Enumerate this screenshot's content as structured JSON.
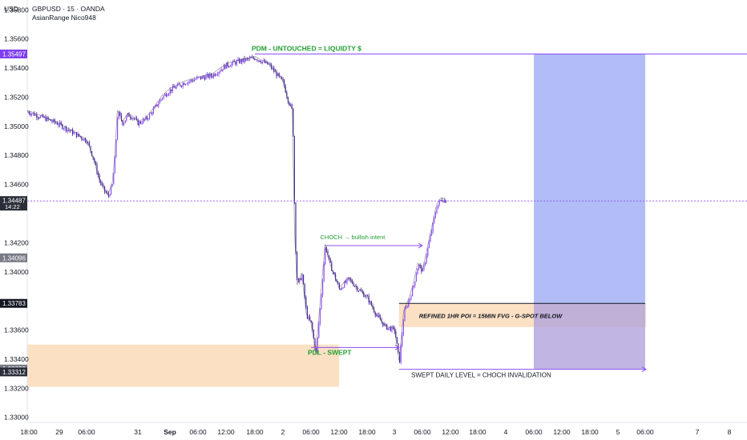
{
  "header": {
    "symbol_line": "GBPUSD · 15 · OANDA",
    "indicator": "AsianRange Nico948",
    "currency": "USD"
  },
  "colors": {
    "bull": "#7b2fe0",
    "bear": "#7b2fe0",
    "accent": "#8d4df7",
    "zone": "#f9cc9d",
    "target": "#7f8ff0",
    "stop": "#b1a2dc",
    "green_text": "#22a033"
  },
  "chart_data": {
    "type": "candlestick",
    "symbol": "GBPUSD",
    "timeframe": "15",
    "ylim": [
      1.3292,
      1.3588
    ],
    "y_ticks": [
      "1.33000",
      "1.33200",
      "1.33400",
      "1.33600",
      "1.34000",
      "1.34200",
      "1.34600",
      "1.34800",
      "1.35000",
      "1.35200",
      "1.35400",
      "1.35600",
      "1.35800"
    ],
    "x_ticks": [
      "18:00",
      "29",
      "06:00",
      "31",
      "Sep",
      "06:00",
      "12:00",
      "18:00",
      "2",
      "06:00",
      "12:00",
      "18:00",
      "3",
      "06:00",
      "12:00",
      "18:00",
      "4",
      "06:00",
      "12:00",
      "18:00",
      "5",
      "06:00",
      "7",
      "8"
    ],
    "price_tags": [
      {
        "label": "1.35497",
        "value": 1.35497,
        "color": "#7e3ff2"
      },
      {
        "label": "1.34487",
        "sub": "14:22",
        "value": 1.34487,
        "color": "#2a2e39"
      },
      {
        "label": "1.34096",
        "value": 1.34096,
        "color": "#787b86"
      },
      {
        "label": "1.33783",
        "value": 1.33783,
        "color": "#131722"
      },
      {
        "label": "1.33332",
        "value": 1.33332,
        "color": "#787b86"
      },
      {
        "label": "1.33312",
        "value": 1.33312,
        "color": "#2a2e39"
      }
    ],
    "close_path": [
      [
        "29 00:00",
        1.351
      ],
      [
        "29 03:00",
        1.3502
      ],
      [
        "29 06:00",
        1.349
      ],
      [
        "29 09:00",
        1.3478
      ],
      [
        "29 12:00",
        1.3462
      ],
      [
        "29 14:00",
        1.3456
      ],
      [
        "29 16:00",
        1.3452
      ],
      [
        "29 18:00",
        1.346
      ],
      [
        "29 21:00",
        1.348
      ],
      [
        "30 00:00",
        1.351
      ],
      [
        "30 06:00",
        1.3502
      ],
      [
        "30 12:00",
        1.3508
      ],
      [
        "30 18:00",
        1.3506
      ],
      [
        "31 00:00",
        1.3502
      ],
      [
        "31 06:00",
        1.3505
      ],
      [
        "31 12:00",
        1.3512
      ],
      [
        "31 18:00",
        1.352
      ],
      [
        "Sep 1 00:00",
        1.3525
      ],
      [
        "Sep 1 03:00",
        1.353
      ],
      [
        "Sep 1 06:00",
        1.3533
      ],
      [
        "Sep 1 09:00",
        1.3535
      ],
      [
        "Sep 1 12:00",
        1.3542
      ],
      [
        "Sep 1 15:00",
        1.3545
      ],
      [
        "Sep 1 18:00",
        1.3547
      ],
      [
        "Sep 1 21:00",
        1.3542
      ],
      [
        "Sep 2 00:00",
        1.353
      ],
      [
        "Sep 2 01:00",
        1.3518
      ],
      [
        "Sep 2 02:00",
        1.351
      ],
      [
        "Sep 2 02:30",
        1.3425
      ],
      [
        "Sep 2 03:00",
        1.339
      ],
      [
        "Sep 2 04:00",
        1.3398
      ],
      [
        "Sep 2 05:00",
        1.337
      ],
      [
        "Sep 2 06:00",
        1.3364
      ],
      [
        "Sep 2 07:00",
        1.3343
      ],
      [
        "Sep 2 08:00",
        1.338
      ],
      [
        "Sep 2 09:00",
        1.3418
      ],
      [
        "Sep 2 10:00",
        1.3405
      ],
      [
        "Sep 2 12:00",
        1.3388
      ],
      [
        "Sep 2 14:00",
        1.3395
      ],
      [
        "Sep 2 16:00",
        1.3388
      ],
      [
        "Sep 2 18:00",
        1.3382
      ],
      [
        "Sep 2 20:00",
        1.337
      ],
      [
        "Sep 2 22:00",
        1.3362
      ],
      [
        "Sep 3 00:00",
        1.336
      ],
      [
        "Sep 3 01:00",
        1.3338
      ],
      [
        "Sep 3 02:00",
        1.3372
      ],
      [
        "Sep 3 03:00",
        1.338
      ],
      [
        "Sep 3 04:00",
        1.339
      ],
      [
        "Sep 3 05:00",
        1.3405
      ],
      [
        "Sep 3 06:00",
        1.34
      ],
      [
        "Sep 3 07:00",
        1.3415
      ],
      [
        "Sep 3 08:00",
        1.343
      ],
      [
        "Sep 3 09:00",
        1.3445
      ],
      [
        "Sep 3 10:00",
        1.345
      ],
      [
        "Sep 3 11:00",
        1.34487
      ]
    ],
    "levels": [
      {
        "name": "PDM",
        "value": 1.35497,
        "from": "Sep 1 18:00",
        "to": "right edge"
      },
      {
        "name": "CHOCH",
        "value": 1.3418,
        "from": "Sep 2 09:00",
        "to": "Sep 3 06:00"
      },
      {
        "name": "PDL",
        "value": 1.3348,
        "from": "Sep 2 06:00",
        "to": "Sep 3 01:00"
      },
      {
        "name": "Swept daily",
        "value": 1.3333,
        "from": "Sep 3 01:00",
        "to": "Sep 5 09:00"
      }
    ],
    "zones": [
      {
        "name": "Asian range box",
        "top": 1.335,
        "bottom": 1.3321,
        "from": "29 00:00",
        "to": "Sep 2 12:00",
        "color": "#f9cc9d"
      },
      {
        "name": "Refined POI",
        "top": 1.3378,
        "bottom": 1.3362,
        "from": "Sep 3 01:00",
        "to": "Sep 5 09:00",
        "color": "#f9cc9d"
      }
    ],
    "position": {
      "type": "long",
      "entry": 1.33783,
      "target": 1.35497,
      "stop": 1.33332,
      "from": "Sep 4 06:00",
      "to": "Sep 5 06:00"
    },
    "annotations": [
      {
        "text": "PDM - UNTOUCHED = LIQUIDTY $",
        "color": "#22a033"
      },
      {
        "text": "CHOCH → bullish intent",
        "color": "#22a033"
      },
      {
        "text": "PDL - SWEPT",
        "color": "#22a033"
      },
      {
        "text": "REFINED 1HR POI = 15MIN FVG - G-SPOT BELOW",
        "color": "#131722"
      },
      {
        "text": "SWEPT DAILY LEVEL = CHOCH INVALIDATION",
        "color": "#131722"
      }
    ],
    "grid": false,
    "legend": "none"
  }
}
